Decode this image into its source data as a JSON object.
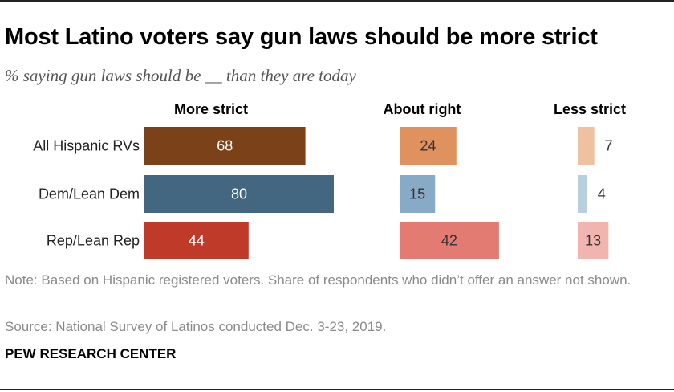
{
  "title": "Most Latino voters say gun laws should be more strict",
  "subtitle": "% saying gun laws should be __ than they are today",
  "note": "Note: Based on Hispanic registered voters. Share of respondents who didn’t offer an answer not shown.",
  "source": "Source: National Survey of Latinos conducted Dec. 3-23, 2019.",
  "brand": "PEW RESEARCH CENTER",
  "chart_data": {
    "type": "bar",
    "orientation": "horizontal",
    "layout": "small multiples (one panel per series)",
    "categories": [
      "All Hispanic RVs",
      "Dem/Lean Dem",
      "Rep/Lean Rep"
    ],
    "series": [
      {
        "name": "More strict",
        "values": [
          68,
          80,
          44
        ],
        "colors": [
          "#7b4219",
          "#436781",
          "#bf3a29"
        ],
        "label_colors": [
          "#ffffff",
          "#ffffff",
          "#ffffff"
        ]
      },
      {
        "name": "About right",
        "values": [
          24,
          15,
          42
        ],
        "colors": [
          "#e0925e",
          "#87abc7",
          "#e37b72"
        ],
        "label_colors": [
          "#333333",
          "#333333",
          "#333333"
        ]
      },
      {
        "name": "Less strict",
        "values": [
          7,
          4,
          13
        ],
        "colors": [
          "#eec1a1",
          "#b9cfdf",
          "#f2b4ae"
        ],
        "label_colors": [
          "#333333",
          "#333333",
          "#333333"
        ]
      }
    ],
    "xlim": [
      0,
      100
    ],
    "grid": false,
    "axes_visible": false,
    "legend": "column headers above each panel"
  }
}
